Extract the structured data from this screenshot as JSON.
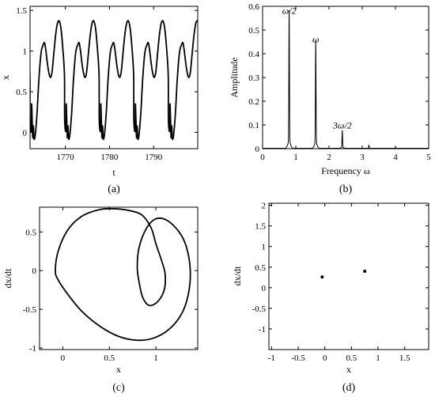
{
  "chart_data": [
    {
      "id": "a",
      "type": "line",
      "panel_label": "(a)",
      "xlabel": "t",
      "ylabel": "x",
      "xlim": [
        1762,
        1800
      ],
      "ylim": [
        -0.2,
        1.55
      ],
      "xticks": [
        1770,
        1780,
        1790
      ],
      "yticks": [
        0,
        0.5,
        1,
        1.5
      ],
      "ytick_labels": [
        "0",
        "0.5",
        "1",
        "1.5"
      ],
      "period": 7.84,
      "t_first_peak": 1765.3,
      "series": [
        {
          "x": [
            1762.0,
            1762.3,
            1762.6,
            1762.9,
            1763.2,
            1763.6,
            1764.0,
            1764.5,
            1765.0,
            1765.3,
            1765.6,
            1766.0,
            1766.4,
            1766.7,
            1767.0,
            1767.4,
            1767.8,
            1768.2,
            1768.6,
            1769.0,
            1769.4,
            1769.8,
            1770.2,
            1770.6,
            1771.0
          ],
          "y": [
            0.15,
            0.02,
            -0.06,
            -0.08,
            -0.02,
            0.25,
            0.65,
            0.98,
            1.08,
            1.1,
            1.0,
            0.82,
            0.7,
            0.68,
            0.75,
            0.98,
            1.2,
            1.34,
            1.37,
            1.28,
            1.05,
            0.7,
            0.35,
            0.08,
            -0.06
          ]
        }
      ]
    },
    {
      "id": "b",
      "type": "line",
      "panel_label": "(b)",
      "xlabel": "Frequency ω",
      "ylabel": "Amplitude",
      "xlim": [
        0,
        5
      ],
      "ylim": [
        0,
        0.6
      ],
      "xticks": [
        0,
        1,
        2,
        3,
        4,
        5
      ],
      "yticks": [
        0,
        0.1,
        0.2,
        0.3,
        0.4,
        0.5,
        0.6
      ],
      "ytick_labels": [
        "0",
        "0.1",
        "0.2",
        "0.3",
        "0.4",
        "0.5",
        "0.6"
      ],
      "peaks": [
        {
          "x": 0.8,
          "y": 0.555,
          "label": "ω/2"
        },
        {
          "x": 1.6,
          "y": 0.435,
          "label": "ω"
        },
        {
          "x": 2.4,
          "y": 0.072,
          "label": "3ω/2"
        },
        {
          "x": 3.2,
          "y": 0.012,
          "label": ""
        },
        {
          "x": 4.0,
          "y": 0.004,
          "label": ""
        }
      ]
    },
    {
      "id": "c",
      "type": "line",
      "panel_label": "(c)",
      "xlabel": "x",
      "ylabel": "dx/dt",
      "xlim": [
        -0.25,
        1.45
      ],
      "ylim": [
        -1.02,
        0.82
      ],
      "xticks": [
        0,
        0.5,
        1
      ],
      "xtick_labels": [
        "0",
        "0.5",
        "1"
      ],
      "yticks": [
        -1,
        -0.5,
        0,
        0.5
      ],
      "ytick_labels": [
        "-1",
        "-0.5",
        "0",
        "0.5"
      ],
      "series": [
        {
          "x": [
            -0.08,
            -0.05,
            0.05,
            0.2,
            0.4,
            0.55,
            0.7,
            0.85,
            0.95,
            1.0,
            1.07,
            1.1,
            1.09,
            1.02,
            0.93,
            0.86,
            0.82,
            0.8,
            0.82,
            0.9,
            1.0,
            1.12,
            1.25,
            1.33,
            1.37,
            1.35,
            1.28,
            1.15,
            0.98,
            0.8,
            0.6,
            0.4,
            0.2,
            0.05,
            -0.05,
            -0.08
          ],
          "y": [
            0.0,
            0.25,
            0.52,
            0.7,
            0.79,
            0.8,
            0.78,
            0.72,
            0.55,
            0.35,
            0.1,
            -0.05,
            -0.25,
            -0.4,
            -0.45,
            -0.35,
            -0.15,
            0.05,
            0.3,
            0.55,
            0.67,
            0.65,
            0.5,
            0.3,
            0.0,
            -0.3,
            -0.55,
            -0.75,
            -0.87,
            -0.9,
            -0.85,
            -0.72,
            -0.52,
            -0.3,
            -0.12,
            0.0
          ]
        }
      ]
    },
    {
      "id": "d",
      "type": "scatter",
      "panel_label": "(d)",
      "xlabel": "x",
      "ylabel": "dx/dt",
      "xlim": [
        -1.05,
        1.95
      ],
      "ylim": [
        -1.5,
        2.05
      ],
      "xticks": [
        -1,
        -0.5,
        0,
        0.5,
        1,
        1.5
      ],
      "xtick_labels": [
        "-1",
        "-0.5",
        "0",
        "0.5",
        "1",
        "1.5"
      ],
      "yticks": [
        -1,
        -0.5,
        0,
        0.5,
        1,
        1.5,
        2
      ],
      "ytick_labels": [
        "-1",
        "-0.5",
        "0",
        "0.5",
        "1",
        "1.5",
        "2"
      ],
      "series": [
        {
          "x": [
            -0.05,
            0.75
          ],
          "y": [
            0.26,
            0.4
          ]
        }
      ]
    }
  ]
}
